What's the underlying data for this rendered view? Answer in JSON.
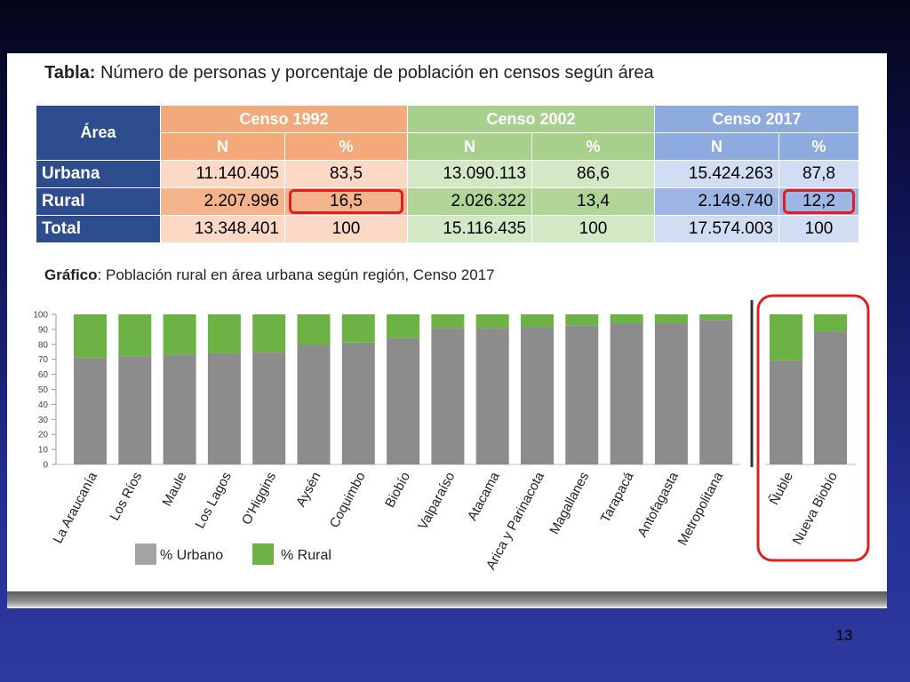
{
  "slide": {
    "table_title_bold": "Tabla:",
    "table_title_rest": " Número de personas y porcentaje de población en censos según área",
    "chart_title_bold": "Gráfico",
    "chart_title_rest": ": Población rural en área urbana según región, Censo 2017",
    "page_number": "13"
  },
  "table": {
    "area_header": "Área",
    "census_headers": [
      "Censo 1992",
      "Censo 2002",
      "Censo 2017"
    ],
    "sub_headers": [
      "N",
      "%"
    ],
    "colors": {
      "area": "#2e4d8f",
      "c1992": "#f4a97a",
      "c2002": "#a6d08c",
      "c2017": "#8eabe0",
      "highlight": "#e02020"
    },
    "rows": [
      {
        "label": "Urbana",
        "values": [
          "11.140.405",
          "83,5",
          "13.090.113",
          "86,6",
          "15.424.263",
          "87,8"
        ]
      },
      {
        "label": "Rural",
        "values": [
          "2.207.996",
          "16,5",
          "2.026.322",
          "13,4",
          "2.149.740",
          "12,2"
        ]
      },
      {
        "label": "Total",
        "values": [
          "13.348.401",
          "100",
          "15.116.435",
          "100",
          "17.574.003",
          "100"
        ]
      }
    ]
  },
  "chart_data": {
    "type": "bar",
    "stacked": true,
    "categories": [
      "La Araucanía",
      "Los Ríos",
      "Maule",
      "Los Lagos",
      "O'Higgins",
      "Aysén",
      "Coquimbo",
      "Biobío",
      "Valparaíso",
      "Atacama",
      "Arica y Parinacota",
      "Magallanes",
      "Tarapacá",
      "Antofagasta",
      "Metropolitana"
    ],
    "highlighted_categories": [
      "Ñuble",
      "Nueva Biobío"
    ],
    "series": [
      {
        "name": "% Urbano",
        "color": "#8c8c8c",
        "values": [
          71.1,
          72.1,
          73.3,
          74.0,
          75.0,
          79.6,
          81.2,
          84.2,
          91.0,
          91.0,
          91.7,
          92.5,
          94.1,
          94.1,
          96.3
        ]
      },
      {
        "name": "% Rural",
        "color": "#6db244",
        "values": [
          28.9,
          27.9,
          26.7,
          26.0,
          25.0,
          20.4,
          18.8,
          15.8,
          9.0,
          9.0,
          8.3,
          7.5,
          5.9,
          5.9,
          3.7
        ]
      }
    ],
    "highlighted_series": {
      "urbano": [
        69.4,
        88.4
      ],
      "rural": [
        30.6,
        11.6
      ]
    },
    "ylim": [
      0,
      100
    ],
    "yticks": [
      0,
      10,
      20,
      30,
      40,
      50,
      60,
      70,
      80,
      90,
      100
    ],
    "xlabel": "",
    "ylabel": "",
    "legend_position": "bottom-left",
    "grid": false
  }
}
